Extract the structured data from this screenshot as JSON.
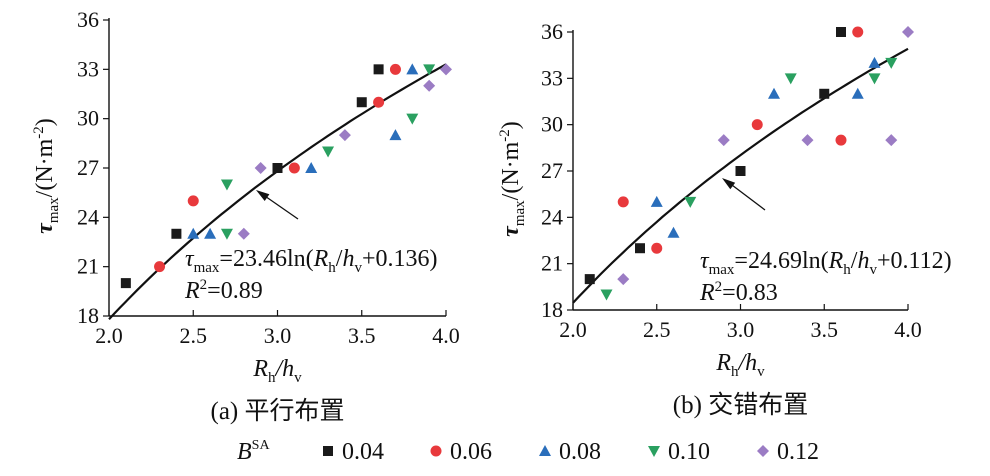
{
  "legend": {
    "title": "B",
    "title_sup": "SA",
    "position": "bottom",
    "entries": [
      {
        "label": "0.04",
        "color": "#1a1a1a",
        "marker": "square"
      },
      {
        "label": "0.06",
        "color": "#e8393c",
        "marker": "circle"
      },
      {
        "label": "0.08",
        "color": "#2a6ebb",
        "marker": "triangle-up"
      },
      {
        "label": "0.10",
        "color": "#2aa060",
        "marker": "triangle-down"
      },
      {
        "label": "0.12",
        "color": "#9b7cc4",
        "marker": "diamond"
      }
    ]
  },
  "chart_data": [
    {
      "type": "scatter",
      "caption": "(a) 平行布置",
      "xlabel": {
        "main": "R",
        "sub1": "h",
        "slash": "/h",
        "sub2": "v"
      },
      "ylabel": {
        "main": "τ",
        "sub": "max",
        "unit": "/(N·m",
        "sup": "-2",
        "close": ")"
      },
      "xlim": [
        2.0,
        4.0
      ],
      "ylim": [
        18,
        36
      ],
      "xticks": [
        "2.0",
        "2.5",
        "3.0",
        "3.5",
        "4.0"
      ],
      "yticks": [
        "18",
        "21",
        "24",
        "27",
        "30",
        "33",
        "36"
      ],
      "fit": {
        "a": 23.46,
        "b": 0.136,
        "equation": "=23.46ln(",
        "eq_tail": "+0.136)",
        "r2": "=0.89"
      },
      "series": [
        {
          "name": "0.04",
          "points": [
            [
              2.1,
              20
            ],
            [
              2.4,
              23
            ],
            [
              3.0,
              27
            ],
            [
              3.5,
              31
            ],
            [
              3.6,
              33
            ]
          ]
        },
        {
          "name": "0.06",
          "points": [
            [
              2.3,
              21
            ],
            [
              2.5,
              25
            ],
            [
              3.1,
              27
            ],
            [
              3.6,
              31
            ],
            [
              3.7,
              33
            ]
          ]
        },
        {
          "name": "0.08",
          "points": [
            [
              2.5,
              23
            ],
            [
              2.6,
              23
            ],
            [
              3.2,
              27
            ],
            [
              3.7,
              29
            ],
            [
              3.8,
              33
            ]
          ]
        },
        {
          "name": "0.10",
          "points": [
            [
              2.7,
              26
            ],
            [
              2.7,
              23
            ],
            [
              3.3,
              28
            ],
            [
              3.8,
              30
            ],
            [
              3.9,
              33
            ]
          ]
        },
        {
          "name": "0.12",
          "points": [
            [
              2.8,
              23
            ],
            [
              2.9,
              27
            ],
            [
              3.4,
              29
            ],
            [
              3.9,
              32
            ],
            [
              4.0,
              33
            ]
          ]
        }
      ]
    },
    {
      "type": "scatter",
      "caption": "(b) 交错布置",
      "xlabel": {
        "main": "R",
        "sub1": "h",
        "slash": "/h",
        "sub2": "v"
      },
      "ylabel": {
        "main": "τ",
        "sub": "max",
        "unit": "/(N·m",
        "sup": "-2",
        "close": ")"
      },
      "xlim": [
        2.0,
        4.0
      ],
      "ylim": [
        18,
        36
      ],
      "xticks": [
        "2.0",
        "2.5",
        "3.0",
        "3.5",
        "4.0"
      ],
      "yticks": [
        "18",
        "21",
        "24",
        "27",
        "30",
        "33",
        "36"
      ],
      "fit": {
        "a": 24.69,
        "b": 0.112,
        "equation": "=24.69ln(",
        "eq_tail": "+0.112)",
        "r2": "=0.83"
      },
      "series": [
        {
          "name": "0.04",
          "points": [
            [
              2.1,
              20
            ],
            [
              2.4,
              22
            ],
            [
              3.0,
              27
            ],
            [
              3.5,
              32
            ],
            [
              3.6,
              36
            ]
          ]
        },
        {
          "name": "0.06",
          "points": [
            [
              2.3,
              25
            ],
            [
              2.5,
              22
            ],
            [
              3.1,
              30
            ],
            [
              3.6,
              29
            ],
            [
              3.7,
              36
            ]
          ]
        },
        {
          "name": "0.08",
          "points": [
            [
              2.5,
              25
            ],
            [
              2.6,
              23
            ],
            [
              3.2,
              32
            ],
            [
              3.7,
              32
            ],
            [
              3.8,
              34
            ]
          ]
        },
        {
          "name": "0.10",
          "points": [
            [
              2.2,
              19
            ],
            [
              2.7,
              25
            ],
            [
              3.3,
              33
            ],
            [
              3.8,
              33
            ],
            [
              3.9,
              34
            ]
          ]
        },
        {
          "name": "0.12",
          "points": [
            [
              2.3,
              20
            ],
            [
              2.9,
              29
            ],
            [
              3.4,
              29
            ],
            [
              3.9,
              29
            ],
            [
              4.0,
              36
            ]
          ]
        }
      ]
    }
  ]
}
